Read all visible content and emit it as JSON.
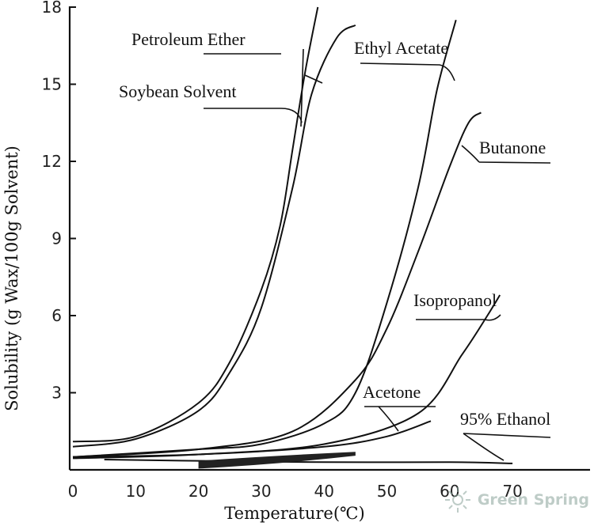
{
  "chart_data": {
    "type": "line",
    "xlabel": "Temperature(℃)",
    "ylabel": "Solubility (g Wax/100g Solvent)",
    "xlim": [
      0,
      72
    ],
    "ylim": [
      0,
      18
    ],
    "x_ticks": [
      "0",
      "10",
      "20",
      "30",
      "40",
      "50",
      "60",
      "70"
    ],
    "y_ticks": [
      "3",
      "6",
      "9",
      "12",
      "15",
      "18"
    ],
    "grid": false,
    "legend": "none",
    "series": [
      {
        "name": "Petroleum Ether",
        "points": [
          [
            0,
            1.1
          ],
          [
            10,
            1.3
          ],
          [
            20,
            2.6
          ],
          [
            25,
            4.2
          ],
          [
            30,
            7.0
          ],
          [
            33,
            9.5
          ],
          [
            35,
            12.5
          ],
          [
            37,
            15.5
          ],
          [
            39,
            18
          ]
        ]
      },
      {
        "name": "Soybean Solvent",
        "points": [
          [
            0,
            0.9
          ],
          [
            10,
            1.2
          ],
          [
            20,
            2.3
          ],
          [
            25,
            3.8
          ],
          [
            30,
            6.3
          ],
          [
            35,
            11.0
          ],
          [
            38,
            14.6
          ],
          [
            42,
            16.8
          ],
          [
            45,
            17.3
          ]
        ]
      },
      {
        "name": "Ethyl Acetate",
        "points": [
          [
            0,
            0.5
          ],
          [
            20,
            0.8
          ],
          [
            30,
            1.0
          ],
          [
            40,
            1.8
          ],
          [
            45,
            3.0
          ],
          [
            50,
            6.5
          ],
          [
            55,
            11.0
          ],
          [
            58,
            14.8
          ],
          [
            61,
            17.5
          ]
        ]
      },
      {
        "name": "Butanone",
        "points": [
          [
            0,
            0.5
          ],
          [
            20,
            0.8
          ],
          [
            35,
            1.5
          ],
          [
            45,
            3.5
          ],
          [
            50,
            5.5
          ],
          [
            55,
            8.5
          ],
          [
            60,
            11.8
          ],
          [
            63,
            13.5
          ],
          [
            65,
            13.9
          ]
        ]
      },
      {
        "name": "Isopropanol",
        "points": [
          [
            0,
            0.45
          ],
          [
            20,
            0.6
          ],
          [
            40,
            1.0
          ],
          [
            55,
            2.2
          ],
          [
            62,
            4.5
          ],
          [
            66,
            6.0
          ],
          [
            68,
            6.8
          ]
        ]
      },
      {
        "name": "Acetone",
        "points": [
          [
            0,
            0.5
          ],
          [
            20,
            0.6
          ],
          [
            40,
            0.9
          ],
          [
            50,
            1.3
          ],
          [
            57,
            1.9
          ]
        ]
      },
      {
        "name": "95% Ethanol",
        "points": [
          [
            5,
            0.4
          ],
          [
            20,
            0.35
          ],
          [
            40,
            0.3
          ],
          [
            60,
            0.3
          ],
          [
            70,
            0.25
          ]
        ]
      }
    ],
    "labels": [
      "Petroleum Ether",
      "Soybean Solvent",
      "Ethyl Acetate",
      "Butanone",
      "Isopropanol",
      "Acetone",
      "95% Ethanol"
    ]
  },
  "watermark": {
    "text": "Green Spring",
    "color": "#8aa39b",
    "icon": "sun-logo-icon"
  }
}
